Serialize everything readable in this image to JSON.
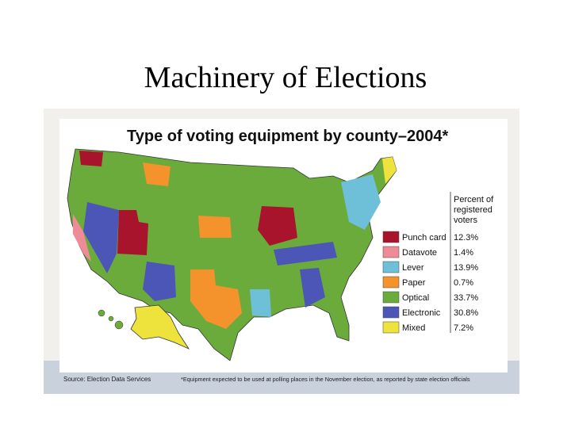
{
  "slide": {
    "title": "Machinery of Elections"
  },
  "figure": {
    "title": "Type of voting equipment by county–2004*",
    "legend_title": [
      "Percent of",
      "registered",
      "voters"
    ],
    "legend": [
      {
        "name": "Punch card",
        "color": "#a8142c",
        "value": "12.3%"
      },
      {
        "name": "Datavote",
        "color": "#ef8b96",
        "value": "1.4%"
      },
      {
        "name": "Lever",
        "color": "#6ec0d8",
        "value": "13.9%"
      },
      {
        "name": "Paper",
        "color": "#f4922b",
        "value": "0.7%"
      },
      {
        "name": "Optical",
        "color": "#6aab3c",
        "value": "33.7%"
      },
      {
        "name": "Electronic",
        "color": "#4b56b6",
        "value": "30.8%"
      },
      {
        "name": "Mixed",
        "color": "#eee23c",
        "value": "7.2%"
      }
    ],
    "source": "Source: Election Data Services",
    "footnote": "*Equipment expected to be used at polling places in the November election, as reported by state election officials"
  }
}
